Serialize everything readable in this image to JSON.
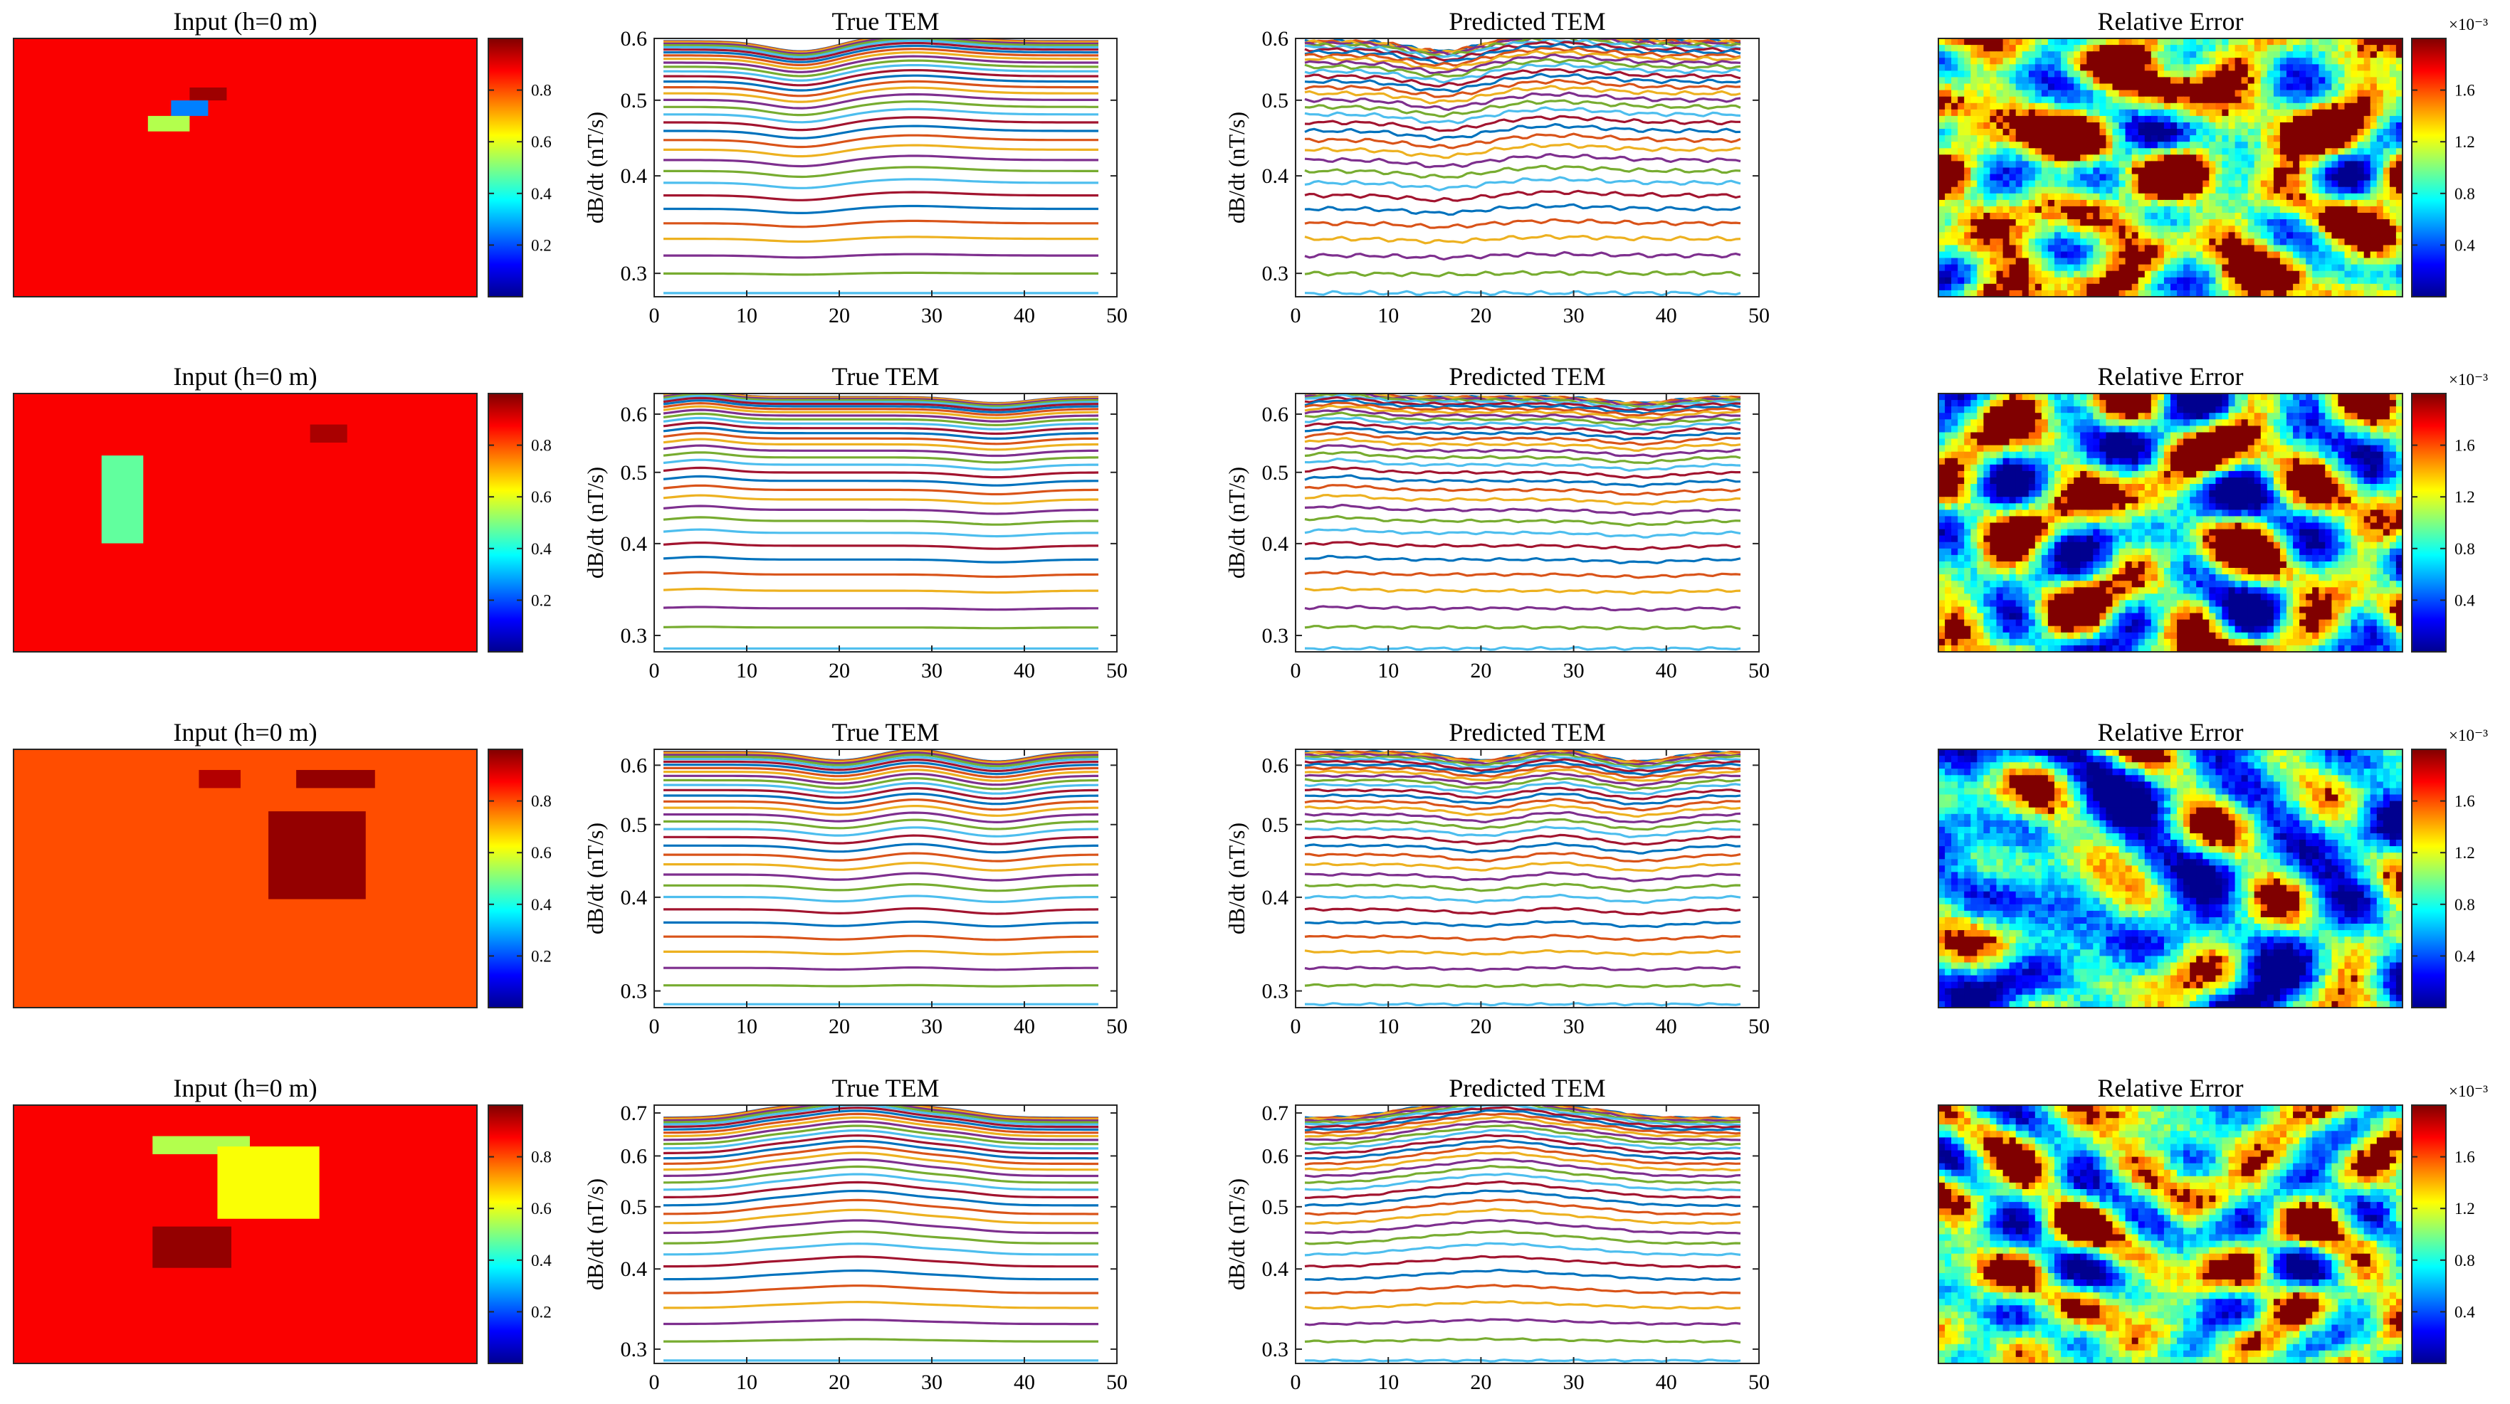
{
  "colors": {
    "line_palette": [
      "#0072BD",
      "#D95319",
      "#EDB120",
      "#7E2F8E",
      "#77AC30",
      "#4DBEEE",
      "#A2142F"
    ],
    "jet": [
      "#00008F",
      "#0000FF",
      "#0080FF",
      "#00FFFF",
      "#80FF80",
      "#FFFF00",
      "#FF8000",
      "#FF0000",
      "#800000"
    ]
  },
  "chart_data": [
    {
      "type": "heatmap",
      "row": 0,
      "panel": "input",
      "title": "Input (h=0 m)",
      "background_value": 0.88,
      "blocks": [
        {
          "x0": 0.38,
          "x1": 0.46,
          "y0": 0.19,
          "y1": 0.24,
          "value": 0.97
        },
        {
          "x0": 0.34,
          "x1": 0.42,
          "y0": 0.24,
          "y1": 0.3,
          "value": 0.25
        },
        {
          "x0": 0.29,
          "x1": 0.38,
          "y0": 0.3,
          "y1": 0.36,
          "value": 0.55
        }
      ],
      "colorbar": {
        "ticks": [
          "0.2",
          "0.4",
          "0.6",
          "0.8"
        ],
        "tick_values": [
          0.2,
          0.4,
          0.6,
          0.8
        ],
        "range": [
          0,
          1
        ]
      }
    },
    {
      "type": "line",
      "row": 0,
      "panel": "true",
      "title": "True TEM",
      "ylabel": "dB/dt (nT/s)",
      "x_ticks": [
        "0",
        "10",
        "20",
        "30",
        "40",
        "50"
      ],
      "x_tick_values": [
        0,
        10,
        20,
        30,
        40,
        50
      ],
      "xlim": [
        0,
        50
      ],
      "y_ticks": [
        "0.3",
        "0.4",
        "0.5",
        "0.6"
      ],
      "y_tick_values": [
        0.3,
        0.4,
        0.5,
        0.6
      ],
      "ylim": [
        0.28,
        0.6
      ],
      "yscale": "log",
      "curves": {
        "count": 34,
        "top": 0.595,
        "bottom": 0.283,
        "power": 1.8,
        "bumps": [
          {
            "x": 16,
            "width": 5,
            "amp": -0.018
          },
          {
            "x": 28,
            "width": 7,
            "amp": 0.012
          }
        ],
        "noise": 0
      }
    },
    {
      "type": "line",
      "row": 0,
      "panel": "pred",
      "title": "Predicted TEM",
      "ylabel": "dB/dt (nT/s)",
      "x_ticks": [
        "0",
        "10",
        "20",
        "30",
        "40",
        "50"
      ],
      "x_tick_values": [
        0,
        10,
        20,
        30,
        40,
        50
      ],
      "xlim": [
        0,
        50
      ],
      "y_ticks": [
        "0.3",
        "0.4",
        "0.5",
        "0.6"
      ],
      "y_tick_values": [
        0.3,
        0.4,
        0.5,
        0.6
      ],
      "ylim": [
        0.28,
        0.6
      ],
      "yscale": "log",
      "curves": {
        "count": 34,
        "top": 0.595,
        "bottom": 0.283,
        "power": 1.8,
        "bumps": [
          {
            "x": 16,
            "width": 5,
            "amp": -0.018
          },
          {
            "x": 28,
            "width": 7,
            "amp": 0.012
          }
        ],
        "noise": 0.0035
      }
    },
    {
      "type": "heatmap",
      "row": 0,
      "panel": "error",
      "title": "Relative Error",
      "exponent": "×10⁻³",
      "colorbar": {
        "ticks": [
          "0.4",
          "0.8",
          "1.2",
          "1.6"
        ],
        "tick_values": [
          0.4,
          0.8,
          1.2,
          1.6
        ],
        "range": [
          0,
          2
        ]
      },
      "field": {
        "seed": 11,
        "scale": 1.0,
        "bias": 0.15
      }
    },
    {
      "type": "heatmap",
      "row": 1,
      "panel": "input",
      "title": "Input (h=0 m)",
      "background_value": 0.88,
      "blocks": [
        {
          "x0": 0.64,
          "x1": 0.72,
          "y0": 0.12,
          "y1": 0.19,
          "value": 0.96
        },
        {
          "x0": 0.19,
          "x1": 0.28,
          "y0": 0.24,
          "y1": 0.58,
          "value": 0.47
        }
      ],
      "colorbar": {
        "ticks": [
          "0.2",
          "0.4",
          "0.6",
          "0.8"
        ],
        "tick_values": [
          0.2,
          0.4,
          0.6,
          0.8
        ],
        "range": [
          0,
          1
        ]
      }
    },
    {
      "type": "line",
      "row": 1,
      "panel": "true",
      "title": "True TEM",
      "ylabel": "dB/dt (nT/s)",
      "x_ticks": [
        "0",
        "10",
        "20",
        "30",
        "40",
        "50"
      ],
      "x_tick_values": [
        0,
        10,
        20,
        30,
        40,
        50
      ],
      "xlim": [
        0,
        50
      ],
      "y_ticks": [
        "0.3",
        "0.4",
        "0.5",
        "0.6"
      ],
      "y_tick_values": [
        0.3,
        0.4,
        0.5,
        0.6
      ],
      "ylim": [
        0.285,
        0.64
      ],
      "yscale": "log",
      "curves": {
        "count": 34,
        "top": 0.633,
        "bottom": 0.288,
        "power": 1.9,
        "bumps": [
          {
            "x": 5,
            "width": 4,
            "amp": 0.012
          },
          {
            "x": 37,
            "width": 5,
            "amp": -0.012
          }
        ],
        "noise": 0
      }
    },
    {
      "type": "line",
      "row": 1,
      "panel": "pred",
      "title": "Predicted TEM",
      "ylabel": "dB/dt (nT/s)",
      "x_ticks": [
        "0",
        "10",
        "20",
        "30",
        "40",
        "50"
      ],
      "x_tick_values": [
        0,
        10,
        20,
        30,
        40,
        50
      ],
      "xlim": [
        0,
        50
      ],
      "y_ticks": [
        "0.3",
        "0.4",
        "0.5",
        "0.6"
      ],
      "y_tick_values": [
        0.3,
        0.4,
        0.5,
        0.6
      ],
      "ylim": [
        0.285,
        0.64
      ],
      "yscale": "log",
      "curves": {
        "count": 34,
        "top": 0.633,
        "bottom": 0.288,
        "power": 1.9,
        "bumps": [
          {
            "x": 5,
            "width": 4,
            "amp": 0.012
          },
          {
            "x": 37,
            "width": 5,
            "amp": -0.012
          }
        ],
        "noise": 0.0025
      }
    },
    {
      "type": "heatmap",
      "row": 1,
      "panel": "error",
      "title": "Relative Error",
      "exponent": "×10⁻³",
      "colorbar": {
        "ticks": [
          "0.4",
          "0.8",
          "1.2",
          "1.6"
        ],
        "tick_values": [
          0.4,
          0.8,
          1.2,
          1.6
        ],
        "range": [
          0,
          2
        ]
      },
      "field": {
        "seed": 23,
        "scale": 1.0,
        "bias": 0.0
      }
    },
    {
      "type": "heatmap",
      "row": 2,
      "panel": "input",
      "title": "Input (h=0 m)",
      "background_value": 0.8,
      "blocks": [
        {
          "x0": 0.4,
          "x1": 0.49,
          "y0": 0.08,
          "y1": 0.15,
          "value": 0.95
        },
        {
          "x0": 0.61,
          "x1": 0.78,
          "y0": 0.08,
          "y1": 0.15,
          "value": 0.98
        },
        {
          "x0": 0.55,
          "x1": 0.76,
          "y0": 0.24,
          "y1": 0.58,
          "value": 0.98
        }
      ],
      "colorbar": {
        "ticks": [
          "0.2",
          "0.4",
          "0.6",
          "0.8"
        ],
        "tick_values": [
          0.2,
          0.4,
          0.6,
          0.8
        ],
        "range": [
          0,
          1
        ]
      }
    },
    {
      "type": "line",
      "row": 2,
      "panel": "true",
      "title": "True TEM",
      "ylabel": "dB/dt (nT/s)",
      "x_ticks": [
        "0",
        "10",
        "20",
        "30",
        "40",
        "50"
      ],
      "x_tick_values": [
        0,
        10,
        20,
        30,
        40,
        50
      ],
      "xlim": [
        0,
        50
      ],
      "y_ticks": [
        "0.3",
        "0.4",
        "0.5",
        "0.6"
      ],
      "y_tick_values": [
        0.3,
        0.4,
        0.5,
        0.6
      ],
      "ylim": [
        0.285,
        0.63
      ],
      "yscale": "log",
      "curves": {
        "count": 34,
        "top": 0.625,
        "bottom": 0.288,
        "power": 1.7,
        "bumps": [
          {
            "x": 20,
            "width": 5,
            "amp": -0.016
          },
          {
            "x": 37,
            "width": 5,
            "amp": -0.018
          },
          {
            "x": 28,
            "width": 4,
            "amp": 0.006
          }
        ],
        "noise": 0
      }
    },
    {
      "type": "line",
      "row": 2,
      "panel": "pred",
      "title": "Predicted TEM",
      "ylabel": "dB/dt (nT/s)",
      "x_ticks": [
        "0",
        "10",
        "20",
        "30",
        "40",
        "50"
      ],
      "x_tick_values": [
        0,
        10,
        20,
        30,
        40,
        50
      ],
      "xlim": [
        0,
        50
      ],
      "y_ticks": [
        "0.3",
        "0.4",
        "0.5",
        "0.6"
      ],
      "y_tick_values": [
        0.3,
        0.4,
        0.5,
        0.6
      ],
      "ylim": [
        0.285,
        0.63
      ],
      "yscale": "log",
      "curves": {
        "count": 34,
        "top": 0.625,
        "bottom": 0.288,
        "power": 1.7,
        "bumps": [
          {
            "x": 20,
            "width": 5,
            "amp": -0.016
          },
          {
            "x": 37,
            "width": 5,
            "amp": -0.018
          },
          {
            "x": 28,
            "width": 4,
            "amp": 0.006
          }
        ],
        "noise": 0.002
      }
    },
    {
      "type": "heatmap",
      "row": 2,
      "panel": "error",
      "title": "Relative Error",
      "exponent": "×10⁻³",
      "colorbar": {
        "ticks": [
          "0.4",
          "0.8",
          "1.2",
          "1.6"
        ],
        "tick_values": [
          0.4,
          0.8,
          1.2,
          1.6
        ],
        "range": [
          0,
          2
        ]
      },
      "field": {
        "seed": 37,
        "scale": 1.0,
        "bias": -0.2
      }
    },
    {
      "type": "heatmap",
      "row": 3,
      "panel": "input",
      "title": "Input (h=0 m)",
      "background_value": 0.88,
      "blocks": [
        {
          "x0": 0.3,
          "x1": 0.51,
          "y0": 0.12,
          "y1": 0.19,
          "value": 0.55
        },
        {
          "x0": 0.44,
          "x1": 0.66,
          "y0": 0.16,
          "y1": 0.44,
          "value": 0.62
        },
        {
          "x0": 0.3,
          "x1": 0.47,
          "y0": 0.47,
          "y1": 0.63,
          "value": 0.98
        }
      ],
      "colorbar": {
        "ticks": [
          "0.2",
          "0.4",
          "0.6",
          "0.8"
        ],
        "tick_values": [
          0.2,
          0.4,
          0.6,
          0.8
        ],
        "range": [
          0,
          1
        ]
      }
    },
    {
      "type": "line",
      "row": 3,
      "panel": "true",
      "title": "True TEM",
      "ylabel": "dB/dt (nT/s)",
      "x_ticks": [
        "0",
        "10",
        "20",
        "30",
        "40",
        "50"
      ],
      "x_tick_values": [
        0,
        10,
        20,
        30,
        40,
        50
      ],
      "xlim": [
        0,
        50
      ],
      "y_ticks": [
        "0.3",
        "0.4",
        "0.5",
        "0.6",
        "0.7"
      ],
      "y_tick_values": [
        0.3,
        0.4,
        0.5,
        0.6,
        0.7
      ],
      "ylim": [
        0.285,
        0.72
      ],
      "yscale": "log",
      "curves": {
        "count": 34,
        "top": 0.688,
        "bottom": 0.288,
        "power": 1.7,
        "bumps": [
          {
            "x": 22,
            "width": 9,
            "amp": 0.05
          },
          {
            "x": 12,
            "width": 4,
            "amp": 0.008
          },
          {
            "x": 33,
            "width": 4,
            "amp": 0.008
          }
        ],
        "noise": 0
      }
    },
    {
      "type": "line",
      "row": 3,
      "panel": "pred",
      "title": "Predicted TEM",
      "ylabel": "dB/dt (nT/s)",
      "x_ticks": [
        "0",
        "10",
        "20",
        "30",
        "40",
        "50"
      ],
      "x_tick_values": [
        0,
        10,
        20,
        30,
        40,
        50
      ],
      "xlim": [
        0,
        50
      ],
      "y_ticks": [
        "0.3",
        "0.4",
        "0.5",
        "0.6",
        "0.7"
      ],
      "y_tick_values": [
        0.3,
        0.4,
        0.5,
        0.6,
        0.7
      ],
      "ylim": [
        0.285,
        0.72
      ],
      "yscale": "log",
      "curves": {
        "count": 34,
        "top": 0.688,
        "bottom": 0.288,
        "power": 1.7,
        "bumps": [
          {
            "x": 22,
            "width": 9,
            "amp": 0.05
          },
          {
            "x": 12,
            "width": 4,
            "amp": 0.008
          },
          {
            "x": 33,
            "width": 4,
            "amp": 0.008
          }
        ],
        "noise": 0.002
      }
    },
    {
      "type": "heatmap",
      "row": 3,
      "panel": "error",
      "title": "Relative Error",
      "exponent": "×10⁻³",
      "colorbar": {
        "ticks": [
          "0.4",
          "0.8",
          "1.2",
          "1.6"
        ],
        "tick_values": [
          0.4,
          0.8,
          1.2,
          1.6
        ],
        "range": [
          0,
          2
        ]
      },
      "field": {
        "seed": 51,
        "scale": 1.0,
        "bias": 0.0
      }
    }
  ]
}
